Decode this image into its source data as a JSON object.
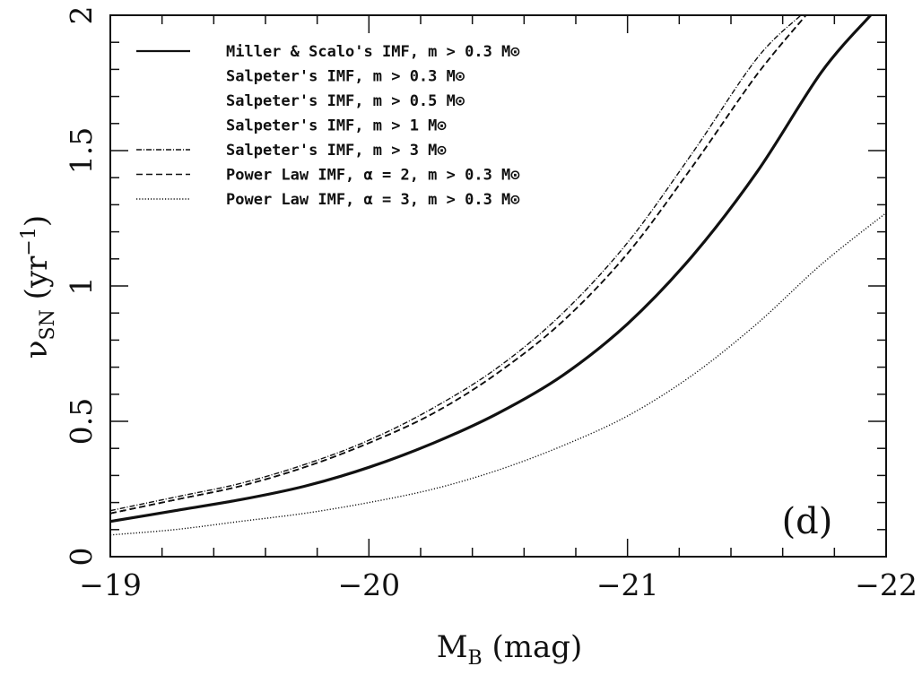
{
  "chart_data": {
    "type": "line",
    "xlabel": {
      "main": "M",
      "sub": "B",
      "unit": "(mag)"
    },
    "ylabel": {
      "main": "ν",
      "sub": "SN",
      "unit_pre": "(yr",
      "sup": "−1",
      "unit_post": ")"
    },
    "xlim": [
      -19,
      -22
    ],
    "ylim": [
      0,
      2
    ],
    "x_ticks": [
      {
        "value": -19,
        "label": "−19"
      },
      {
        "value": -20,
        "label": "−20"
      },
      {
        "value": -21,
        "label": "−21"
      },
      {
        "value": -22,
        "label": "−22"
      }
    ],
    "y_ticks": [
      {
        "value": 0,
        "label": "0"
      },
      {
        "value": 0.5,
        "label": "0.5"
      },
      {
        "value": 1,
        "label": "1"
      },
      {
        "value": 1.5,
        "label": "1.5"
      },
      {
        "value": 2,
        "label": "2"
      }
    ],
    "panel_label": "(d)",
    "grid": false,
    "legend_position": "top-left",
    "series": [
      {
        "name": "Miller & Scalo's IMF, m > 0.3 M⊙",
        "style": "solid-thick",
        "x": [
          -19,
          -19.25,
          -19.5,
          -19.75,
          -20,
          -20.25,
          -20.5,
          -20.75,
          -21,
          -21.25,
          -21.5,
          -21.75,
          -21.94
        ],
        "y": [
          0.13,
          0.17,
          0.21,
          0.26,
          0.33,
          0.42,
          0.53,
          0.67,
          0.86,
          1.11,
          1.42,
          1.79,
          2.0
        ]
      },
      {
        "name": "Salpeter's IMF, m > 0.3 M⊙",
        "style": "dashed",
        "x": [
          -19,
          -19.25,
          -19.5,
          -19.75,
          -20,
          -20.25,
          -20.5,
          -20.75,
          -21,
          -21.25,
          -21.5,
          -21.69
        ],
        "y": [
          0.16,
          0.21,
          0.26,
          0.33,
          0.42,
          0.53,
          0.68,
          0.87,
          1.12,
          1.44,
          1.78,
          2.0
        ]
      },
      {
        "name": "Salpeter's IMF, m > 0.5 M⊙",
        "style": "dashed",
        "x": [
          -19,
          -19.25,
          -19.5,
          -19.75,
          -20,
          -20.25,
          -20.5,
          -20.75,
          -21,
          -21.25,
          -21.5,
          -21.69
        ],
        "y": [
          0.16,
          0.21,
          0.26,
          0.33,
          0.42,
          0.53,
          0.68,
          0.87,
          1.12,
          1.44,
          1.78,
          2.0
        ]
      },
      {
        "name": "Salpeter's IMF, m > 1 M⊙",
        "style": "dashed",
        "x": [
          -19,
          -19.25,
          -19.5,
          -19.75,
          -20,
          -20.25,
          -20.5,
          -20.75,
          -21,
          -21.25,
          -21.5,
          -21.69
        ],
        "y": [
          0.16,
          0.21,
          0.26,
          0.33,
          0.42,
          0.53,
          0.68,
          0.87,
          1.12,
          1.44,
          1.78,
          2.0
        ]
      },
      {
        "name": "Salpeter's IMF, m > 3 M⊙",
        "style": "dash-dot",
        "x": [
          -19,
          -19.25,
          -19.5,
          -19.75,
          -20,
          -20.25,
          -20.5,
          -20.75,
          -21,
          -21.25,
          -21.5,
          -21.67
        ],
        "y": [
          0.17,
          0.22,
          0.27,
          0.34,
          0.43,
          0.55,
          0.7,
          0.9,
          1.16,
          1.49,
          1.84,
          2.0
        ]
      },
      {
        "name": "Power Law IMF, α = 2, m > 0.3 M⊙",
        "style": "dashed",
        "x": [
          -19,
          -19.25,
          -19.5,
          -19.75,
          -20,
          -20.25,
          -20.5,
          -20.75,
          -21,
          -21.25,
          -21.5,
          -21.69
        ],
        "y": [
          0.16,
          0.21,
          0.26,
          0.33,
          0.42,
          0.53,
          0.68,
          0.87,
          1.12,
          1.44,
          1.78,
          2.0
        ]
      },
      {
        "name": "Power Law IMF, α = 3, m > 0.3 M⊙",
        "style": "dotted",
        "x": [
          -19,
          -19.25,
          -19.5,
          -19.75,
          -20,
          -20.25,
          -20.5,
          -20.75,
          -21,
          -21.25,
          -21.5,
          -21.75,
          -22
        ],
        "y": [
          0.08,
          0.1,
          0.13,
          0.16,
          0.2,
          0.25,
          0.32,
          0.41,
          0.52,
          0.67,
          0.86,
          1.08,
          1.27
        ]
      }
    ]
  }
}
